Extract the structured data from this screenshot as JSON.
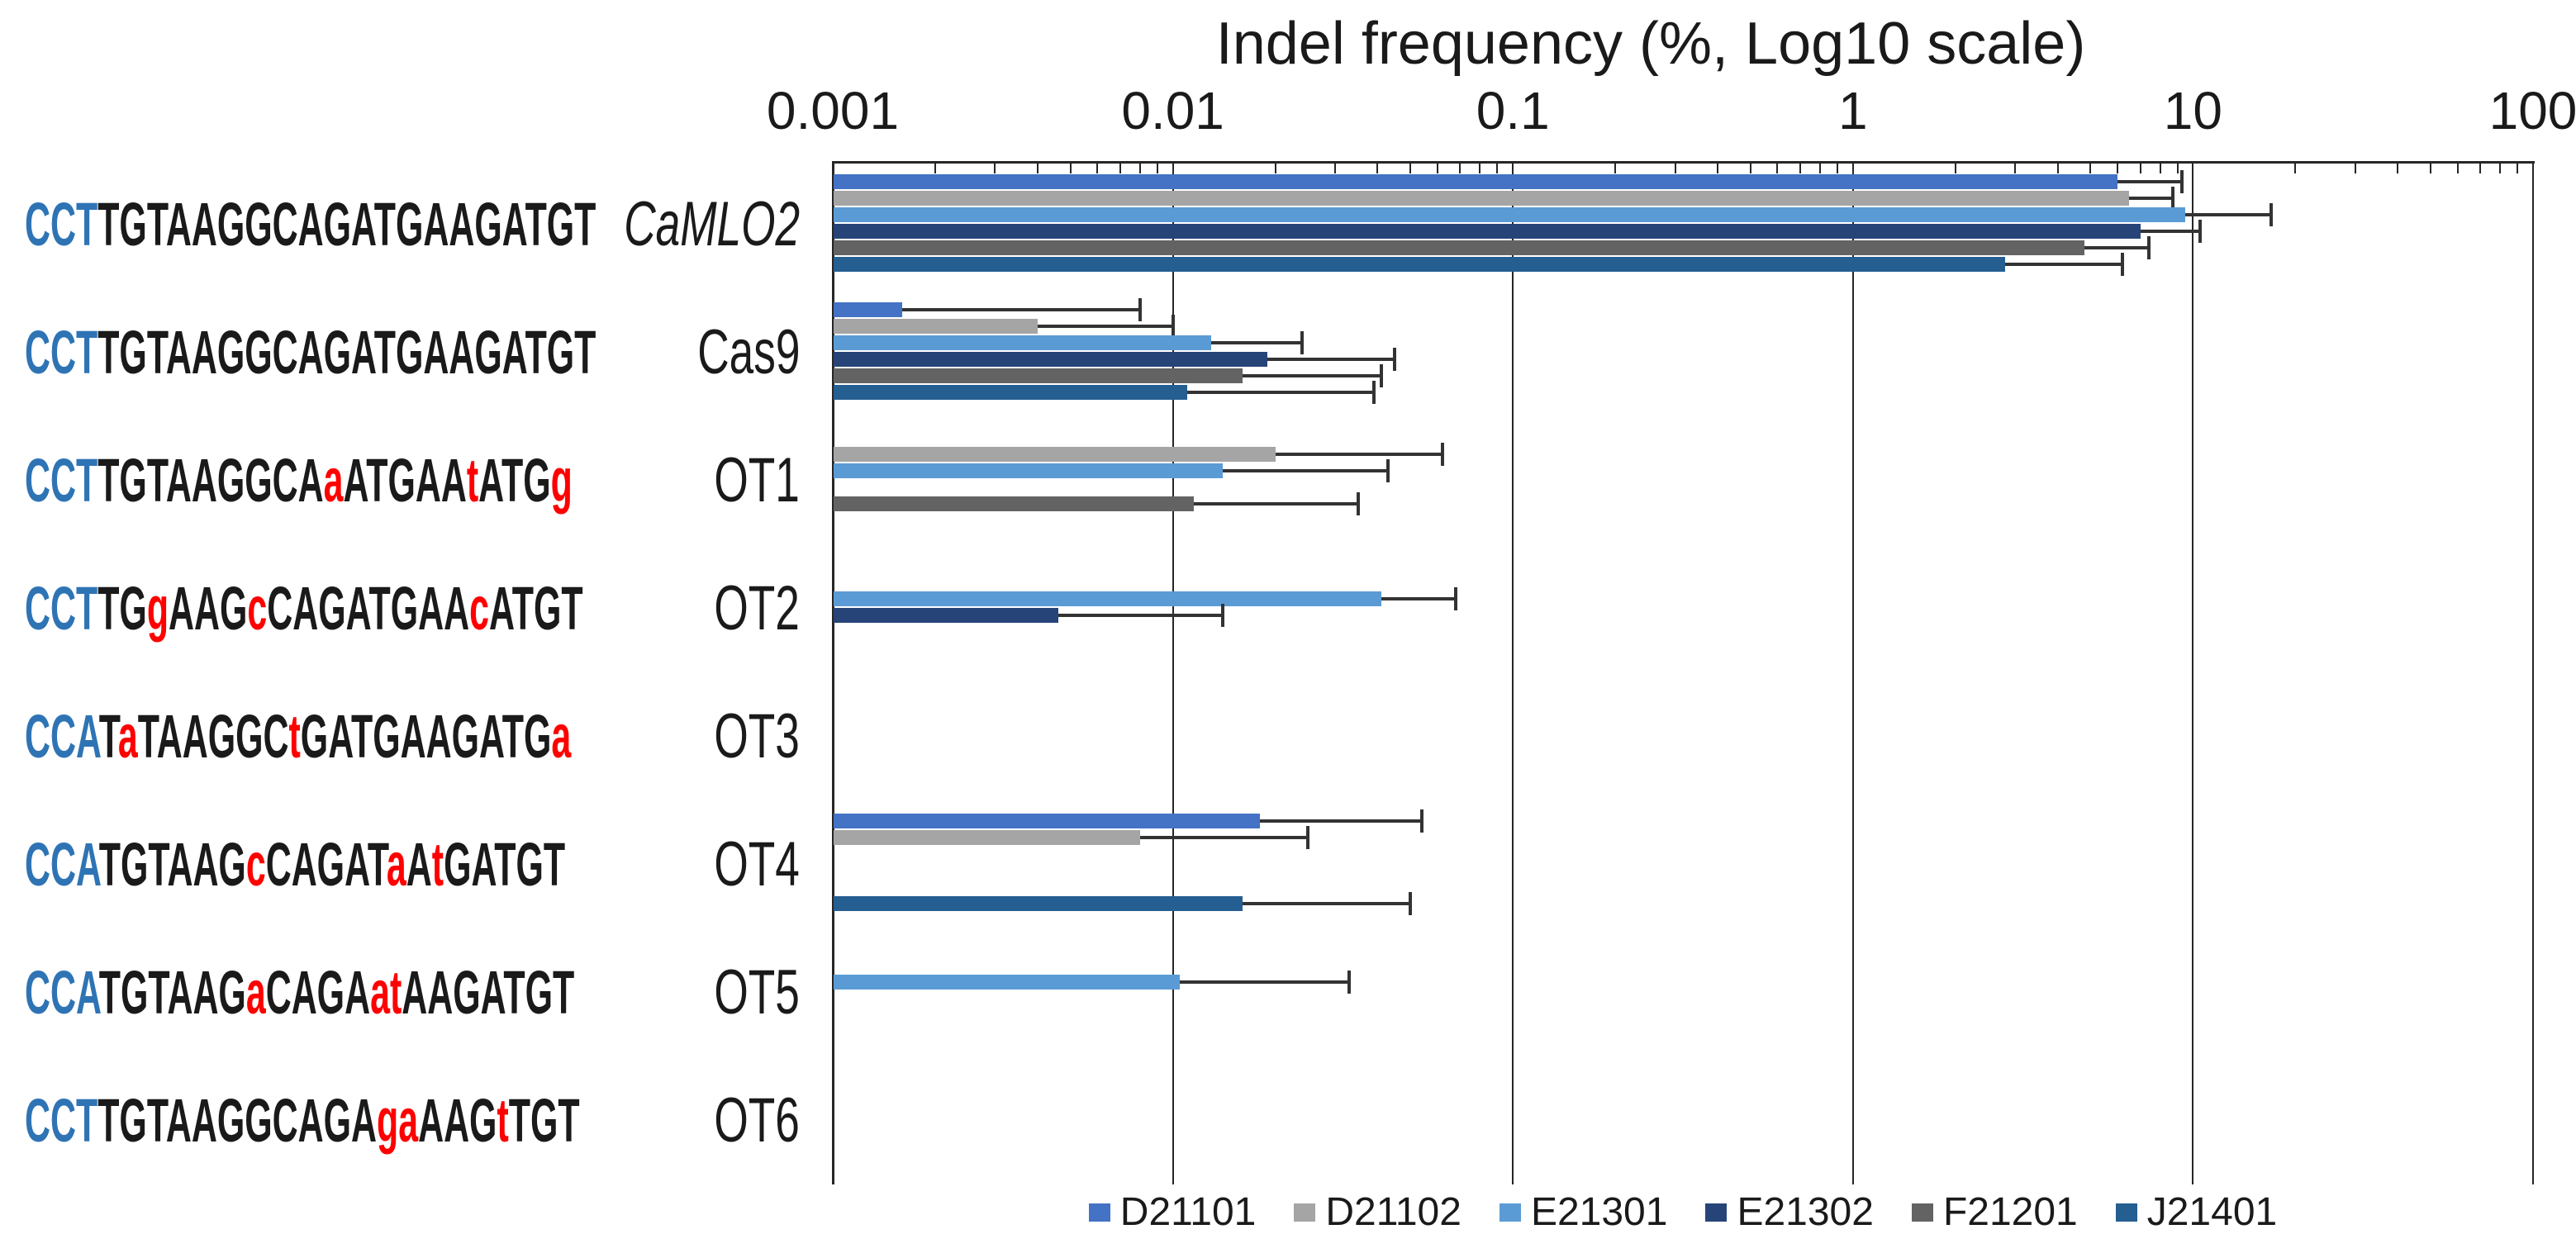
{
  "chart_data": {
    "type": "bar",
    "orientation": "horizontal",
    "title": "Indel frequency (%, Log10 scale)",
    "x_axis": {
      "scale": "log10",
      "min": 0.001,
      "max": 100,
      "position": "top",
      "grid": true,
      "tick_values": [
        0.001,
        0.01,
        0.1,
        1,
        10,
        100
      ],
      "tick_labels": [
        "0.001",
        "0.01",
        "0.1",
        "1",
        "10",
        "100"
      ]
    },
    "legend_position": "bottom",
    "series": [
      {
        "name": "D21101",
        "color": "#4472C4"
      },
      {
        "name": "D21102",
        "color": "#A5A5A5"
      },
      {
        "name": "E21301",
        "color": "#5B9BD5"
      },
      {
        "name": "E21302",
        "color": "#264478"
      },
      {
        "name": "F21201",
        "color": "#636363"
      },
      {
        "name": "J21401",
        "color": "#255E91"
      }
    ],
    "colors": {
      "pam": "#2E74B5",
      "mut": "#FF0000",
      "norm": "#1A1A1A",
      "axis": "#262626",
      "error": "#333333"
    },
    "rows": [
      {
        "label": "CaMLO2",
        "italic": true,
        "sequence": [
          {
            "t": "CCT",
            "c": "pam"
          },
          {
            "t": "TGTAAGGCAGATGAAGATGT",
            "c": "norm"
          }
        ],
        "bars": {
          "D21101": {
            "v": 6.0,
            "e": 9.3
          },
          "D21102": {
            "v": 6.5,
            "e": 8.7
          },
          "E21301": {
            "v": 9.5,
            "e": 17.0
          },
          "E21302": {
            "v": 7.0,
            "e": 10.5
          },
          "F21201": {
            "v": 4.8,
            "e": 7.4
          },
          "J21401": {
            "v": 2.8,
            "e": 6.2
          }
        }
      },
      {
        "label": "Cas9",
        "italic": false,
        "sequence": [
          {
            "t": "CCT",
            "c": "pam"
          },
          {
            "t": "TGTAAGGCAGATGAAGATGT",
            "c": "norm"
          }
        ],
        "bars": {
          "D21101": {
            "v": 0.0016,
            "e": 0.008
          },
          "D21102": {
            "v": 0.004,
            "e": 0.01
          },
          "E21301": {
            "v": 0.013,
            "e": 0.024
          },
          "E21302": {
            "v": 0.019,
            "e": 0.045
          },
          "F21201": {
            "v": 0.016,
            "e": 0.041
          },
          "J21401": {
            "v": 0.011,
            "e": 0.039
          }
        }
      },
      {
        "label": "OT1",
        "italic": false,
        "sequence": [
          {
            "t": "CCT",
            "c": "pam"
          },
          {
            "t": "TGTAAGGCA",
            "c": "norm"
          },
          {
            "t": "a",
            "c": "mut"
          },
          {
            "t": "ATGAA",
            "c": "norm"
          },
          {
            "t": "t",
            "c": "mut"
          },
          {
            "t": "ATG",
            "c": "norm"
          },
          {
            "t": "g",
            "c": "mut"
          }
        ],
        "bars": {
          "D21102": {
            "v": 0.02,
            "e": 0.062
          },
          "E21301": {
            "v": 0.014,
            "e": 0.043
          },
          "F21201": {
            "v": 0.0115,
            "e": 0.035
          }
        }
      },
      {
        "label": "OT2",
        "italic": false,
        "sequence": [
          {
            "t": "CCT",
            "c": "pam"
          },
          {
            "t": "TG",
            "c": "norm"
          },
          {
            "t": "g",
            "c": "mut"
          },
          {
            "t": "AAG",
            "c": "norm"
          },
          {
            "t": "c",
            "c": "mut"
          },
          {
            "t": "CAGATGAA",
            "c": "norm"
          },
          {
            "t": "c",
            "c": "mut"
          },
          {
            "t": "ATGT",
            "c": "norm"
          }
        ],
        "bars": {
          "E21301": {
            "v": 0.041,
            "e": 0.068
          },
          "E21302": {
            "v": 0.0046,
            "e": 0.014
          }
        }
      },
      {
        "label": "OT3",
        "italic": false,
        "sequence": [
          {
            "t": "CCA",
            "c": "pam"
          },
          {
            "t": "T",
            "c": "norm"
          },
          {
            "t": "a",
            "c": "mut"
          },
          {
            "t": "TAAGGC",
            "c": "norm"
          },
          {
            "t": "t",
            "c": "mut"
          },
          {
            "t": "GATGAAGATG",
            "c": "norm"
          },
          {
            "t": "a",
            "c": "mut"
          }
        ],
        "bars": {}
      },
      {
        "label": "OT4",
        "italic": false,
        "sequence": [
          {
            "t": "CCA",
            "c": "pam"
          },
          {
            "t": "TGTAAG",
            "c": "norm"
          },
          {
            "t": "c",
            "c": "mut"
          },
          {
            "t": "CAGAT",
            "c": "norm"
          },
          {
            "t": "a",
            "c": "mut"
          },
          {
            "t": "A",
            "c": "norm"
          },
          {
            "t": "t",
            "c": "mut"
          },
          {
            "t": "GATGT",
            "c": "norm"
          }
        ],
        "bars": {
          "D21101": {
            "v": 0.018,
            "e": 0.054
          },
          "D21102": {
            "v": 0.008,
            "e": 0.025
          },
          "J21401": {
            "v": 0.016,
            "e": 0.05
          }
        }
      },
      {
        "label": "OT5",
        "italic": false,
        "sequence": [
          {
            "t": "CCA",
            "c": "pam"
          },
          {
            "t": "TGTAAG",
            "c": "norm"
          },
          {
            "t": "a",
            "c": "mut"
          },
          {
            "t": "CAGA",
            "c": "norm"
          },
          {
            "t": "at",
            "c": "mut"
          },
          {
            "t": "AAGATGT",
            "c": "norm"
          }
        ],
        "bars": {
          "E21301": {
            "v": 0.0105,
            "e": 0.033
          }
        }
      },
      {
        "label": "OT6",
        "italic": false,
        "sequence": [
          {
            "t": "CCT",
            "c": "pam"
          },
          {
            "t": "TGTAAGGCAGA",
            "c": "norm"
          },
          {
            "t": "ga",
            "c": "mut"
          },
          {
            "t": "AAG",
            "c": "norm"
          },
          {
            "t": "t",
            "c": "mut"
          },
          {
            "t": "TGT",
            "c": "norm"
          }
        ],
        "bars": {}
      }
    ]
  }
}
